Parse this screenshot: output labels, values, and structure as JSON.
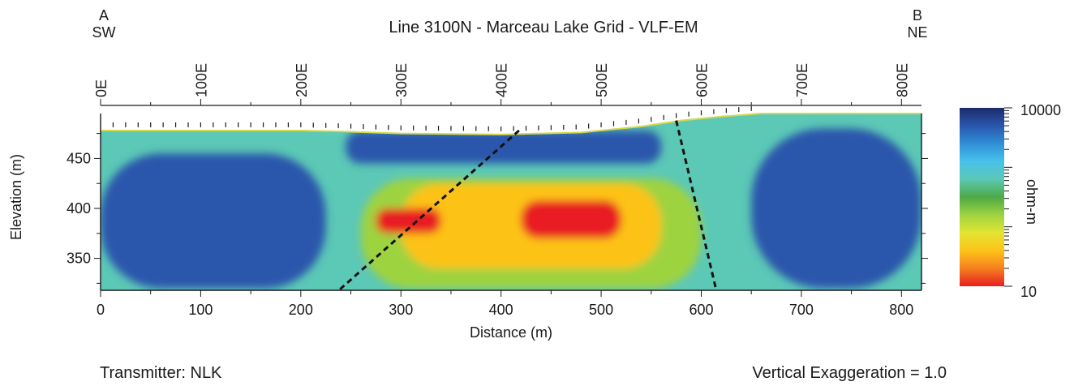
{
  "chart_data": {
    "type": "heatmap",
    "title": "Line 3100N - Marceau Lake Grid - VLF-EM",
    "xlabel": "Distance (m)",
    "ylabel": "Elevation (m)",
    "xlim": [
      0,
      820
    ],
    "ylim": [
      318,
      495
    ],
    "x_ticks": [
      0,
      100,
      200,
      300,
      400,
      500,
      600,
      700,
      800
    ],
    "y_ticks": [
      350,
      400,
      450
    ],
    "endpoints": {
      "left_letter": "A",
      "left_dir": "SW",
      "right_letter": "B",
      "right_dir": "NE"
    },
    "station_labels": [
      {
        "label": "0E",
        "x": 0
      },
      {
        "label": "100E",
        "x": 100
      },
      {
        "label": "200E",
        "x": 200
      },
      {
        "label": "300E",
        "x": 300
      },
      {
        "label": "400E",
        "x": 400
      },
      {
        "label": "500E",
        "x": 500
      },
      {
        "label": "600E",
        "x": 600
      },
      {
        "label": "700E",
        "x": 700
      },
      {
        "label": "800E",
        "x": 800
      }
    ],
    "topography": [
      [
        0,
        478
      ],
      [
        100,
        478
      ],
      [
        200,
        478
      ],
      [
        240,
        477
      ],
      [
        300,
        475
      ],
      [
        400,
        474
      ],
      [
        480,
        476
      ],
      [
        540,
        482
      ],
      [
        580,
        488
      ],
      [
        620,
        492
      ],
      [
        660,
        495
      ],
      [
        820,
        495
      ]
    ],
    "colorbar": {
      "label": "ohm-m",
      "min": 10,
      "max": 10000,
      "scale": "log",
      "tick_labels": [
        "10000",
        "10"
      ],
      "colors": [
        "#1b2a6b",
        "#2a56ac",
        "#2f8fd6",
        "#46c2ea",
        "#5cc8b6",
        "#4daa45",
        "#9ed341",
        "#e3e534",
        "#fdc216",
        "#f58020",
        "#e81e22"
      ]
    },
    "resistivity_zones_ohm_m": [
      {
        "x": [
          0,
          225
        ],
        "elev": [
          320,
          455
        ],
        "value": 6000
      },
      {
        "x": [
          245,
          560
        ],
        "elev": [
          445,
          478
        ],
        "value": 6000
      },
      {
        "x": [
          650,
          820
        ],
        "elev": [
          320,
          480
        ],
        "value": 5000
      },
      {
        "x": [
          260,
          600
        ],
        "elev": [
          320,
          430
        ],
        "value": 150
      },
      {
        "x": [
          300,
          560
        ],
        "elev": [
          340,
          425
        ],
        "value": 30
      },
      {
        "x": [
          275,
          340
        ],
        "elev": [
          375,
          400
        ],
        "value": 12
      },
      {
        "x": [
          420,
          520
        ],
        "elev": [
          370,
          408
        ],
        "value": 12
      }
    ],
    "interpreted_conductors": [
      {
        "top": [
          418,
          478
        ],
        "bottom": [
          238,
          318
        ]
      },
      {
        "top": [
          575,
          488
        ],
        "bottom": [
          615,
          318
        ]
      }
    ],
    "notes": {
      "transmitter": "Transmitter: NLK",
      "vertical_exaggeration": "Vertical Exaggeration = 1.0"
    }
  }
}
